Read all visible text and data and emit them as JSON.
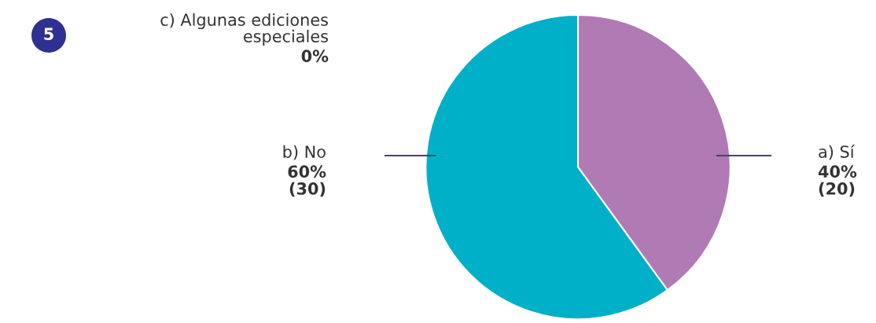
{
  "chart_data": {
    "type": "pie",
    "categories": [
      "a) Sí",
      "b) No",
      "c) Algunas ediciones\nespeciales"
    ],
    "values": [
      40,
      60,
      0
    ],
    "colors": [
      "#b07ab4",
      "#00b0c8",
      "#f0a030"
    ],
    "value_labels": [
      "40%\n(20)",
      "60%\n(30)",
      "0%"
    ],
    "annotations": [
      "5"
    ],
    "legend": false
  }
}
